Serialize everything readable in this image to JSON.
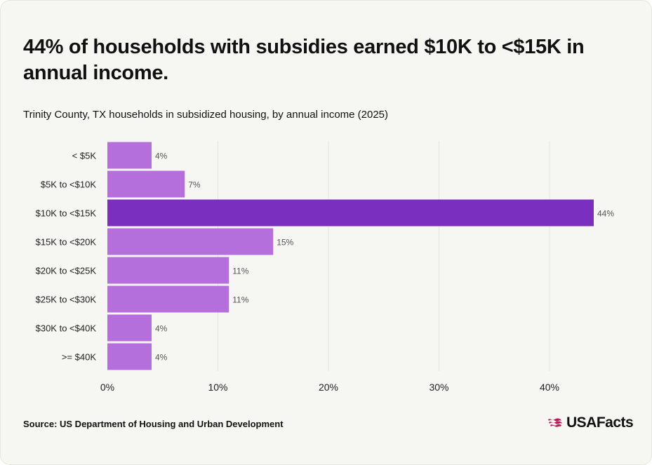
{
  "header": {
    "title": "44% of households with subsidies earned $10K to <$15K in annual income.",
    "subtitle": "Trinity County, TX households in subsidized housing, by annual income (2025)"
  },
  "footer": {
    "source": "Source: US Department of Housing and Urban Development",
    "logo_text": "USAFacts",
    "logo_icon": "usa-flag-icon"
  },
  "colors": {
    "bar": "#b56fdc",
    "highlight": "#7b2fbf",
    "grid": "#e4e4e0",
    "label": "#222222",
    "value_label": "#555555",
    "logo_accent": "#c2185b"
  },
  "chart_data": {
    "type": "bar",
    "orientation": "horizontal",
    "categories": [
      "< $5K",
      "$5K to <$10K",
      "$10K to <$15K",
      "$15K to <$20K",
      "$20K to <$25K",
      "$25K to <$30K",
      "$30K to <$40K",
      ">= $40K"
    ],
    "values": [
      4,
      7,
      44,
      15,
      11,
      11,
      4,
      4
    ],
    "value_labels": [
      "4%",
      "7%",
      "44%",
      "15%",
      "11%",
      "11%",
      "4%",
      "4%"
    ],
    "highlight_index": 2,
    "xlim": [
      0,
      44
    ],
    "x_ticks": [
      0,
      10,
      20,
      30,
      40
    ],
    "x_tick_labels": [
      "0%",
      "10%",
      "20%",
      "30%",
      "40%"
    ],
    "grid": true
  }
}
